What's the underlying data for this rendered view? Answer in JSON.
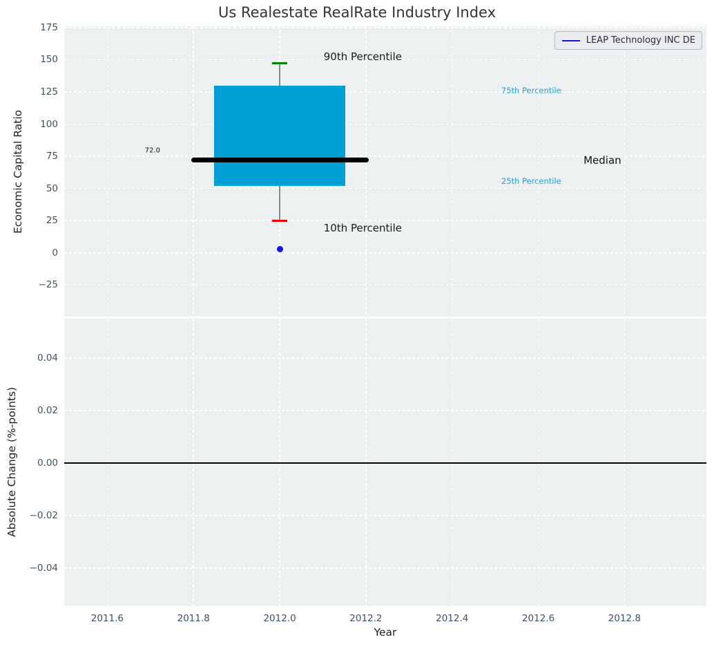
{
  "title": "Us Realestate RealRate Industry Index",
  "legend": {
    "label": "LEAP Technology INC DE",
    "line_color": "#1111ee"
  },
  "colors": {
    "figure_bg": "#ffffff",
    "axes_bg": "#edf0f1",
    "grid": "#ffffff",
    "tick_label": "#3d5166",
    "axis_label": "#1f1f1f",
    "box_fill": "#009fd4",
    "median_line": "#000000",
    "whisker": "#8a8a8a",
    "p90_cap": "#008000",
    "p10_cap": "#ee0000",
    "company_point": "#1111ee",
    "zero_line": "#000000"
  },
  "chart_data": [
    {
      "type": "boxplot",
      "title": "Us Realestate RealRate Industry Index",
      "ylabel": "Economic Capital Ratio",
      "xlim": [
        2011.5,
        2012.99
      ],
      "ylim": [
        -49.5,
        176
      ],
      "grid": true,
      "legend_position": "upper right",
      "yticks": [
        {
          "v": 175,
          "label": "175"
        },
        {
          "v": 150,
          "label": "150"
        },
        {
          "v": 125,
          "label": "125"
        },
        {
          "v": 100,
          "label": "100"
        },
        {
          "v": 75,
          "label": "75"
        },
        {
          "v": 50,
          "label": "50"
        },
        {
          "v": 25,
          "label": "25"
        },
        {
          "v": 0,
          "label": "0"
        },
        {
          "v": -25,
          "label": "−25"
        }
      ],
      "xticks": [
        {
          "v": 2011.6,
          "label": ""
        },
        {
          "v": 2011.8,
          "label": ""
        },
        {
          "v": 2012.0,
          "label": ""
        },
        {
          "v": 2012.2,
          "label": ""
        },
        {
          "v": 2012.4,
          "label": ""
        },
        {
          "v": 2012.6,
          "label": ""
        },
        {
          "v": 2012.8,
          "label": ""
        }
      ],
      "show_xticklabels": false,
      "box": {
        "x": 2012.0,
        "p10": 25,
        "q1": 52,
        "median": 72,
        "q3": 130,
        "p90": 147.5,
        "median_value_label": "72.0",
        "box_half_width": 0.152,
        "median_half_width": 0.206,
        "cap_half_width": 0.017
      },
      "company_point": {
        "x": 2012.0,
        "y": 3.0,
        "label": "LEAP Technology INC DE"
      },
      "annotations": [
        {
          "text": "90th Percentile",
          "x": 2012.102,
          "y": 152.5,
          "color": "#1a1a1a",
          "size": 15
        },
        {
          "text": "10th Percentile",
          "x": 2012.102,
          "y": 19,
          "color": "#1a1a1a",
          "size": 15
        },
        {
          "text": "75th Percentile",
          "x": 2012.514,
          "y": 126,
          "color": "#22a0d4",
          "size": 11.5
        },
        {
          "text": "25th Percentile",
          "x": 2012.514,
          "y": 56,
          "color": "#22a0d4",
          "size": 11.5
        },
        {
          "text": "Median",
          "x": 2012.705,
          "y": 72,
          "color": "#111111",
          "size": 15
        },
        {
          "text": "72.0",
          "x": 2011.687,
          "y": 79.5,
          "color": "#111111",
          "size": 10
        }
      ]
    },
    {
      "type": "line",
      "ylabel": "Absolute Change (%-points)",
      "xlabel": "Year",
      "xlim": [
        2011.5,
        2012.99
      ],
      "ylim": [
        -0.0545,
        0.055
      ],
      "grid": true,
      "series": [],
      "zero_line_y": 0.0,
      "yticks": [
        {
          "v": 0.04,
          "label": "0.04"
        },
        {
          "v": 0.02,
          "label": "0.02"
        },
        {
          "v": 0.0,
          "label": "0.00"
        },
        {
          "v": -0.02,
          "label": "−0.02"
        },
        {
          "v": -0.04,
          "label": "−0.04"
        }
      ],
      "xticks": [
        {
          "v": 2011.6,
          "label": "2011.6"
        },
        {
          "v": 2011.8,
          "label": "2011.8"
        },
        {
          "v": 2012.0,
          "label": "2012.0"
        },
        {
          "v": 2012.2,
          "label": "2012.2"
        },
        {
          "v": 2012.4,
          "label": "2012.4"
        },
        {
          "v": 2012.6,
          "label": "2012.6"
        },
        {
          "v": 2012.8,
          "label": "2012.8"
        }
      ],
      "show_xticklabels": true
    }
  ]
}
